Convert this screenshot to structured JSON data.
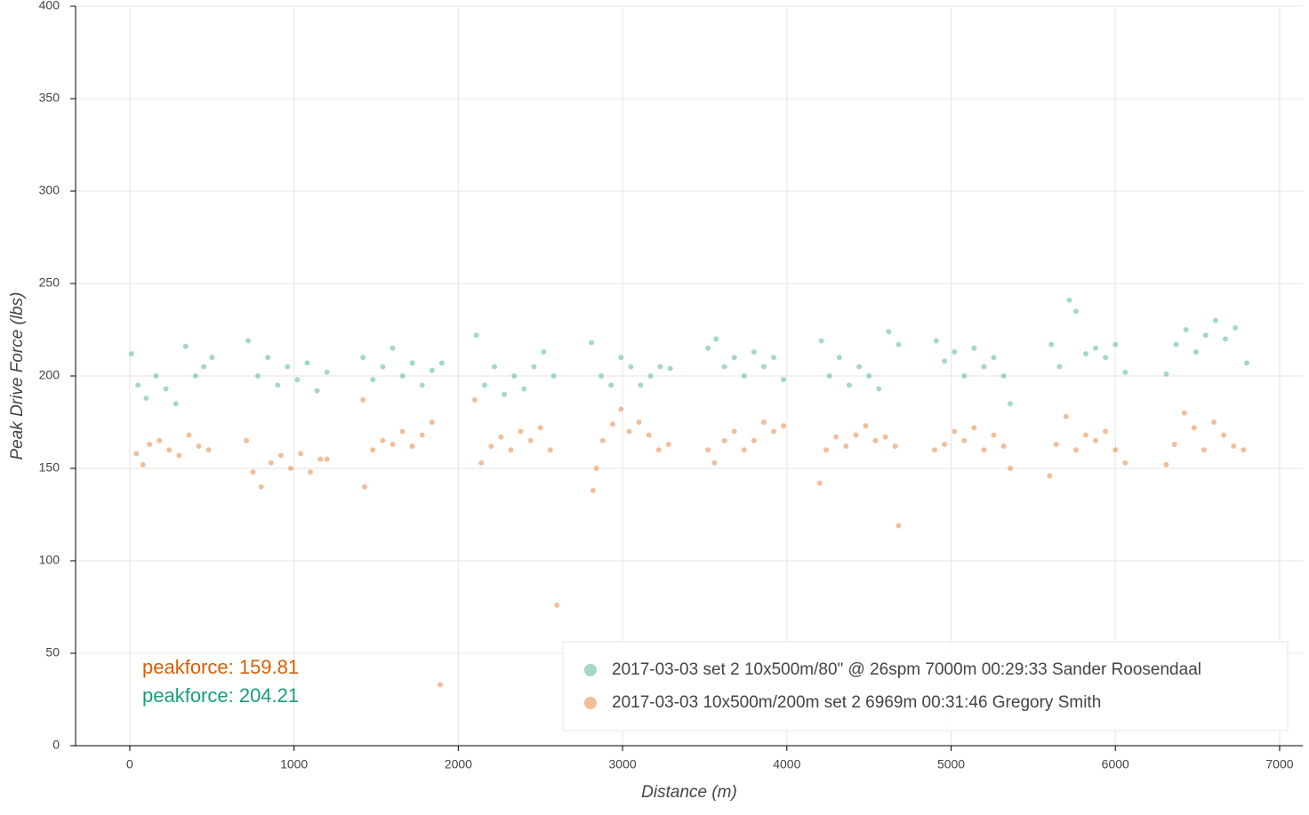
{
  "chart_data": {
    "type": "scatter",
    "xlabel": "Distance (m)",
    "ylabel": "Peak Drive Force (lbs)",
    "xlim": [
      -330,
      7141
    ],
    "ylim": [
      0,
      400
    ],
    "xticks": [
      0,
      1000,
      2000,
      3000,
      4000,
      5000,
      6000,
      7000
    ],
    "yticks": [
      0,
      50,
      100,
      150,
      200,
      250,
      300,
      350,
      400
    ],
    "grid": true,
    "legend": "lower right",
    "annotations": [
      {
        "text": "peakforce: 159.81",
        "color": "#d95f02"
      },
      {
        "text": "peakforce: 204.21",
        "color": "#1b9e77"
      }
    ],
    "series": [
      {
        "name": "2017-03-03 set 2 10x500m/80\" @ 26spm 7000m 00:29:33 Sander Roosendaal",
        "color": "#1b9e77",
        "x": [
          10,
          50,
          100,
          160,
          220,
          280,
          340,
          400,
          450,
          500,
          720,
          780,
          840,
          900,
          960,
          1020,
          1080,
          1140,
          1200,
          1420,
          1480,
          1540,
          1600,
          1660,
          1720,
          1780,
          1840,
          1900,
          2110,
          2160,
          2220,
          2280,
          2340,
          2400,
          2460,
          2520,
          2580,
          2810,
          2870,
          2930,
          2990,
          3050,
          3110,
          3170,
          3230,
          3290,
          3520,
          3570,
          3620,
          3680,
          3740,
          3800,
          3860,
          3920,
          3980,
          4210,
          4260,
          4320,
          4380,
          4440,
          4500,
          4560,
          4620,
          4680,
          4910,
          4960,
          5020,
          5080,
          5140,
          5200,
          5260,
          5320,
          5360,
          5610,
          5660,
          5720,
          5760,
          5820,
          5880,
          5940,
          6000,
          6060,
          6310,
          6370,
          6430,
          6490,
          6550,
          6610,
          6670,
          6730,
          6800
        ],
        "values": [
          212,
          195,
          188,
          200,
          193,
          185,
          216,
          200,
          205,
          210,
          219,
          200,
          210,
          195,
          205,
          198,
          207,
          192,
          202,
          210,
          198,
          205,
          215,
          200,
          207,
          195,
          203,
          207,
          222,
          195,
          205,
          190,
          200,
          193,
          205,
          213,
          200,
          218,
          200,
          195,
          210,
          205,
          195,
          200,
          205,
          204,
          215,
          220,
          205,
          210,
          200,
          213,
          205,
          210,
          198,
          219,
          200,
          210,
          195,
          205,
          200,
          193,
          224,
          217,
          219,
          208,
          213,
          200,
          215,
          205,
          210,
          200,
          185,
          217,
          205,
          241,
          235,
          212,
          215,
          210,
          217,
          202,
          201,
          217,
          225,
          213,
          222,
          230,
          220,
          226,
          207
        ]
      },
      {
        "name": "2017-03-03 10x500m/200m set 2 6969m 00:31:46 Gregory Smith",
        "color": "#d95f02",
        "x": [
          40,
          80,
          120,
          180,
          240,
          300,
          360,
          420,
          480,
          710,
          750,
          800,
          860,
          920,
          980,
          1040,
          1100,
          1160,
          1200,
          1420,
          1430,
          1480,
          1540,
          1600,
          1660,
          1720,
          1780,
          1840,
          1890,
          2100,
          2140,
          2200,
          2260,
          2320,
          2380,
          2440,
          2500,
          2560,
          2600,
          2820,
          2840,
          2880,
          2940,
          2990,
          3040,
          3100,
          3160,
          3220,
          3280,
          3520,
          3560,
          3620,
          3680,
          3740,
          3800,
          3860,
          3920,
          3980,
          4200,
          4240,
          4300,
          4360,
          4420,
          4480,
          4540,
          4600,
          4660,
          4680,
          4900,
          4960,
          5020,
          5080,
          5140,
          5200,
          5260,
          5320,
          5360,
          5600,
          5640,
          5700,
          5760,
          5820,
          5880,
          5940,
          6000,
          6060,
          6310,
          6360,
          6420,
          6480,
          6540,
          6600,
          6660,
          6720,
          6780
        ],
        "values": [
          158,
          152,
          163,
          165,
          160,
          157,
          168,
          162,
          160,
          165,
          148,
          140,
          153,
          157,
          150,
          158,
          148,
          155,
          155,
          187,
          140,
          160,
          165,
          163,
          170,
          162,
          168,
          175,
          33,
          187,
          153,
          162,
          167,
          160,
          170,
          165,
          172,
          160,
          76,
          138,
          150,
          165,
          174,
          182,
          170,
          175,
          168,
          160,
          163,
          160,
          153,
          165,
          170,
          160,
          165,
          175,
          170,
          173,
          142,
          160,
          167,
          162,
          168,
          173,
          165,
          167,
          162,
          119,
          160,
          163,
          170,
          165,
          172,
          160,
          168,
          162,
          150,
          146,
          163,
          178,
          160,
          168,
          165,
          170,
          160,
          153,
          152,
          163,
          180,
          172,
          160,
          175,
          168,
          162,
          160
        ]
      }
    ]
  }
}
